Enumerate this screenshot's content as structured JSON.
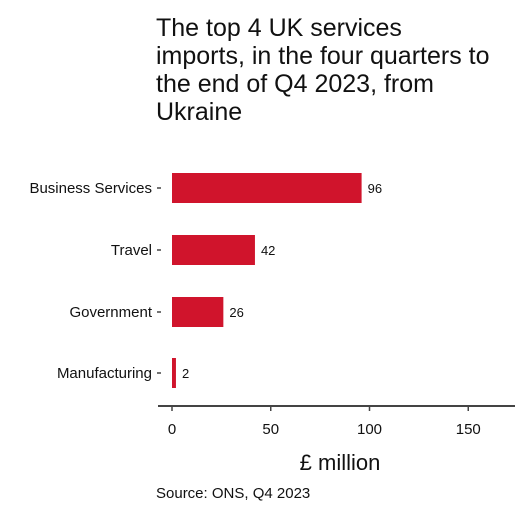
{
  "chart_data": {
    "type": "bar",
    "orientation": "horizontal",
    "title": "The top 4 UK services imports, in the four quarters to the end of Q4 2023, from Ukraine",
    "categories": [
      "Business Services",
      "Travel",
      "Government",
      "Manufacturing"
    ],
    "values": [
      96,
      42,
      26,
      2
    ],
    "xlabel": "£ million",
    "ylabel": "",
    "xlim": [
      0,
      170
    ],
    "xticks": [
      0,
      50,
      100,
      150
    ],
    "bar_color": "#d0142c",
    "axis_color": "#444444",
    "grid": false,
    "legend": "none",
    "source": "Source: ONS, Q4 2023"
  }
}
